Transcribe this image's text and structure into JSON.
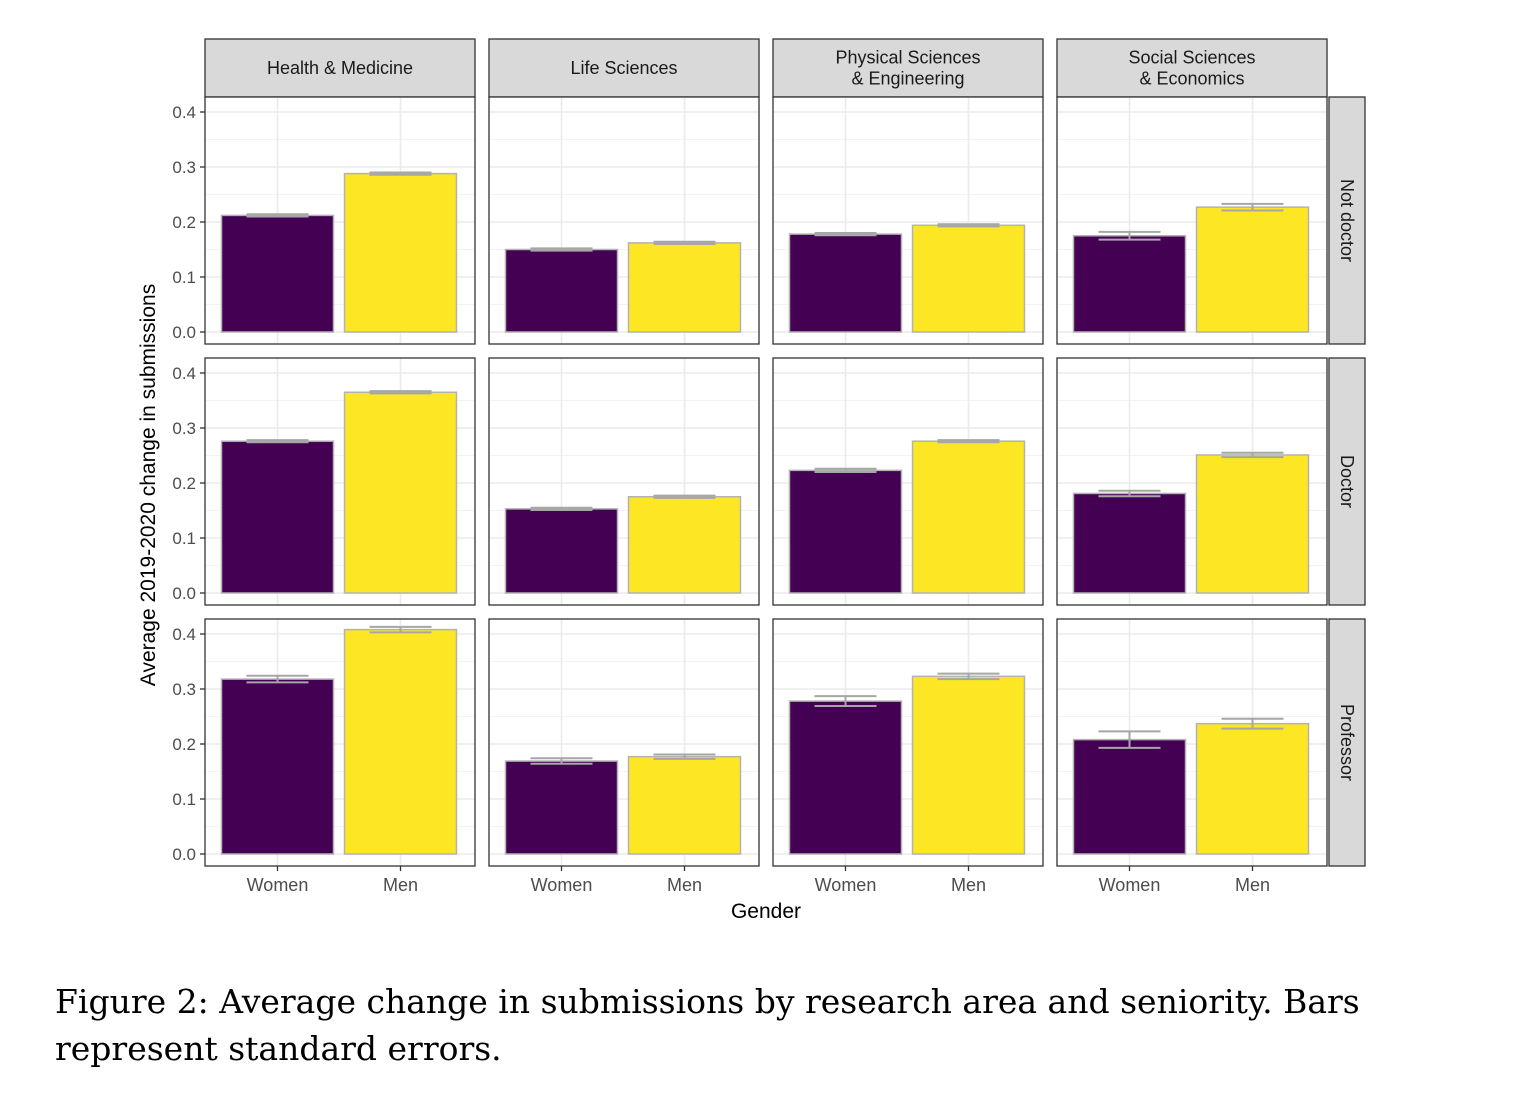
{
  "chart_data": {
    "type": "bar",
    "xlabel": "Gender",
    "ylabel": "Average 2019-2020 change in submissions",
    "ylim": [
      0,
      0.42
    ],
    "yticks": [
      "0.0",
      "0.1",
      "0.2",
      "0.3",
      "0.4"
    ],
    "grid": true,
    "categories": [
      "Women",
      "Men"
    ],
    "column_facets": [
      "Health & Medicine",
      "Life Sciences",
      "Physical Sciences\n& Engineering",
      "Social Sciences\n& Economics"
    ],
    "row_facets": [
      "Not doctor",
      "Doctor",
      "Professor"
    ],
    "colors": {
      "Women": "#440154",
      "Men": "#fde725",
      "bar_outline": "#b3b3b3",
      "errorbar": "#a6a6a6",
      "strip": "#d9d9d9"
    },
    "panels": [
      {
        "row": "Not doctor",
        "column": "Health & Medicine",
        "values": [
          0.212,
          0.288
        ],
        "errors": [
          0.002,
          0.002
        ]
      },
      {
        "row": "Not doctor",
        "column": "Life Sciences",
        "values": [
          0.15,
          0.162
        ],
        "errors": [
          0.002,
          0.002
        ]
      },
      {
        "row": "Not doctor",
        "column": "Physical Sciences\n& Engineering",
        "values": [
          0.178,
          0.194
        ],
        "errors": [
          0.002,
          0.002
        ]
      },
      {
        "row": "Not doctor",
        "column": "Social Sciences\n& Economics",
        "values": [
          0.175,
          0.227
        ],
        "errors": [
          0.007,
          0.006
        ]
      },
      {
        "row": "Doctor",
        "column": "Health & Medicine",
        "values": [
          0.276,
          0.365
        ],
        "errors": [
          0.002,
          0.002
        ]
      },
      {
        "row": "Doctor",
        "column": "Life Sciences",
        "values": [
          0.153,
          0.175
        ],
        "errors": [
          0.002,
          0.002
        ]
      },
      {
        "row": "Doctor",
        "column": "Physical Sciences\n& Engineering",
        "values": [
          0.223,
          0.276
        ],
        "errors": [
          0.003,
          0.002
        ]
      },
      {
        "row": "Doctor",
        "column": "Social Sciences\n& Economics",
        "values": [
          0.181,
          0.251
        ],
        "errors": [
          0.005,
          0.004
        ]
      },
      {
        "row": "Professor",
        "column": "Health & Medicine",
        "values": [
          0.318,
          0.408
        ],
        "errors": [
          0.006,
          0.005
        ]
      },
      {
        "row": "Professor",
        "column": "Life Sciences",
        "values": [
          0.169,
          0.177
        ],
        "errors": [
          0.005,
          0.004
        ]
      },
      {
        "row": "Professor",
        "column": "Physical Sciences\n& Engineering",
        "values": [
          0.278,
          0.323
        ],
        "errors": [
          0.009,
          0.005
        ]
      },
      {
        "row": "Professor",
        "column": "Social Sciences\n& Economics",
        "values": [
          0.208,
          0.237
        ],
        "errors": [
          0.015,
          0.009
        ]
      }
    ]
  },
  "caption": "Figure 2: Average change in submissions by research area and seniority. Bars represent standard errors."
}
